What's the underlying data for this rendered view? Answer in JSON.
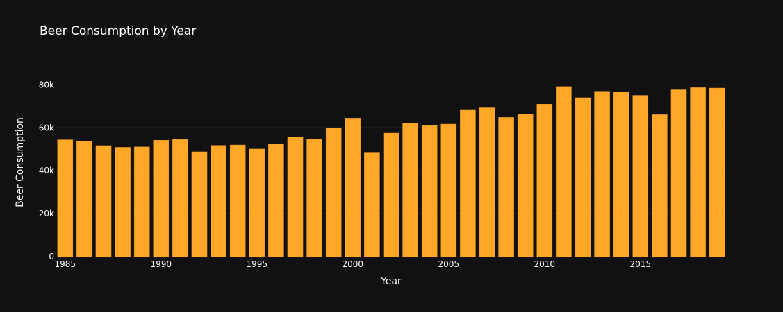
{
  "chart_data": {
    "type": "bar",
    "title": "Beer Consumption by Year",
    "xlabel": "Year",
    "ylabel": "Beer Consumption",
    "x": [
      1985,
      1986,
      1987,
      1988,
      1989,
      1990,
      1991,
      1992,
      1993,
      1994,
      1995,
      1996,
      1997,
      1998,
      1999,
      2000,
      2001,
      2002,
      2003,
      2004,
      2005,
      2006,
      2007,
      2008,
      2009,
      2010,
      2011,
      2012,
      2013,
      2014,
      2015,
      2016,
      2017,
      2018,
      2019
    ],
    "values": [
      54400,
      53700,
      51700,
      50900,
      51100,
      54200,
      54500,
      48800,
      51800,
      52000,
      50100,
      52400,
      55800,
      54700,
      60000,
      64500,
      48600,
      57500,
      62200,
      61000,
      61700,
      68500,
      69300,
      64800,
      66300,
      71000,
      79200,
      74000,
      77000,
      76700,
      75100,
      66100,
      77700,
      78700,
      78500
    ],
    "xticks": [
      "1985",
      "1990",
      "1995",
      "2000",
      "2005",
      "2010",
      "2015"
    ],
    "yticks": [
      "0",
      "20k",
      "40k",
      "60k",
      "80k"
    ],
    "ytick_values": [
      0,
      20000,
      40000,
      60000,
      80000
    ],
    "ylim": [
      0,
      84000
    ],
    "xlim": [
      1984.5,
      2019.5
    ],
    "grid": true,
    "colors": {
      "bar": "#ffa726",
      "bar_outline": "#e8942a",
      "background": "#111111",
      "grid": "#283442",
      "text": "#ffffff"
    }
  }
}
